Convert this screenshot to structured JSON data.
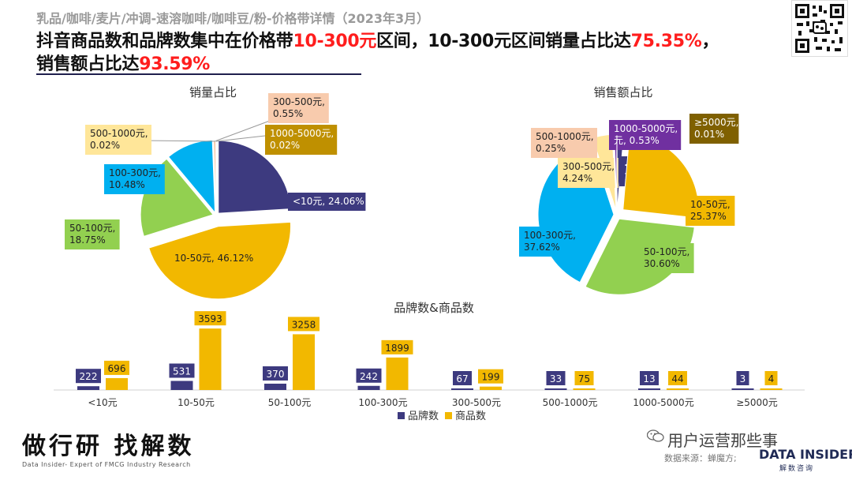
{
  "header": {
    "category": "乳品/咖啡/麦片/冲调-速溶咖啡/咖啡豆/粉-价格带详情（2023年3月）",
    "headline_line1_a": "抖音商品数和品牌数集中在价格带",
    "headline_line1_b": "10-300元",
    "headline_line1_c": "区间，10-300元区间销量占比达",
    "headline_line1_d": "75.35%",
    "headline_line1_e": "，",
    "headline_line2_a": "销售额占比达",
    "headline_line2_b": "93.59%"
  },
  "footer": {
    "brand_cn": "做行研 找解数",
    "brand_en": "Data Insider- Expert of FMCG Industry Research",
    "wechat": "用户运营那些事",
    "source": "数据来源：蝉魔方;",
    "logo": "DATA INSIDER",
    "logo_sub": "解数咨询"
  },
  "chart_data": [
    {
      "type": "pie",
      "title": "销量占比",
      "slices": [
        {
          "label": "<10元",
          "value": 24.06,
          "text": "<10元, 24.06%",
          "color": "#3d3a7f"
        },
        {
          "label": "10-50元",
          "value": 46.12,
          "text": "10-50元, 46.12%",
          "color": "#f2b800"
        },
        {
          "label": "50-100元",
          "value": 18.75,
          "text": "50-100元,\n18.75%",
          "color": "#92d050"
        },
        {
          "label": "100-300元",
          "value": 10.48,
          "text": "100-300元,\n10.48%",
          "color": "#00b0f0"
        },
        {
          "label": "300-500元",
          "value": 0.55,
          "text": "300-500元,\n0.55%",
          "color": "#f8cbad"
        },
        {
          "label": "500-1000元",
          "value": 0.02,
          "text": "500-1000元,\n0.02%",
          "color": "#ffe699"
        },
        {
          "label": "1000-5000元",
          "value": 0.02,
          "text": "1000-5000元,\n0.02%",
          "color": "#bf9000"
        }
      ]
    },
    {
      "type": "pie",
      "title": "销售额占比",
      "slices": [
        {
          "label": "<10元",
          "value": 1.39,
          "text": "<10元,\n1.39%",
          "color": "#3d3a7f"
        },
        {
          "label": "10-50元",
          "value": 25.37,
          "text": "10-50元,\n25.37%",
          "color": "#f2b800"
        },
        {
          "label": "50-100元",
          "value": 30.6,
          "text": "50-100元,\n30.60%",
          "color": "#92d050"
        },
        {
          "label": "100-300元",
          "value": 37.62,
          "text": "100-300元,\n37.62%",
          "color": "#00b0f0"
        },
        {
          "label": "300-500元",
          "value": 4.24,
          "text": "300-500元,\n4.24%",
          "color": "#ffe699"
        },
        {
          "label": "500-1000元",
          "value": 0.25,
          "text": "500-1000元,\n0.25%",
          "color": "#f8cbad"
        },
        {
          "label": "1000-5000元",
          "value": 0.53,
          "text": "1000-5000元,\n元, 0.53%",
          "color": "#7030a0"
        },
        {
          "label": "≥5000元",
          "value": 0.01,
          "text": "≥5000元,\n0.01%",
          "color": "#7f6000"
        }
      ]
    },
    {
      "type": "bar",
      "title": "品牌数&商品数",
      "categories": [
        "<10元",
        "10-50元",
        "50-100元",
        "100-300元",
        "300-500元",
        "500-1000元",
        "1000-5000元",
        "≥5000元"
      ],
      "series": [
        {
          "name": "品牌数",
          "values": [
            222,
            531,
            370,
            242,
            67,
            33,
            13,
            3
          ],
          "color": "#3d3a7f"
        },
        {
          "name": "商品数",
          "values": [
            696,
            3593,
            3258,
            1899,
            199,
            75,
            44,
            4
          ],
          "color": "#f2b800"
        }
      ],
      "ylim": [
        0,
        3600
      ]
    }
  ]
}
